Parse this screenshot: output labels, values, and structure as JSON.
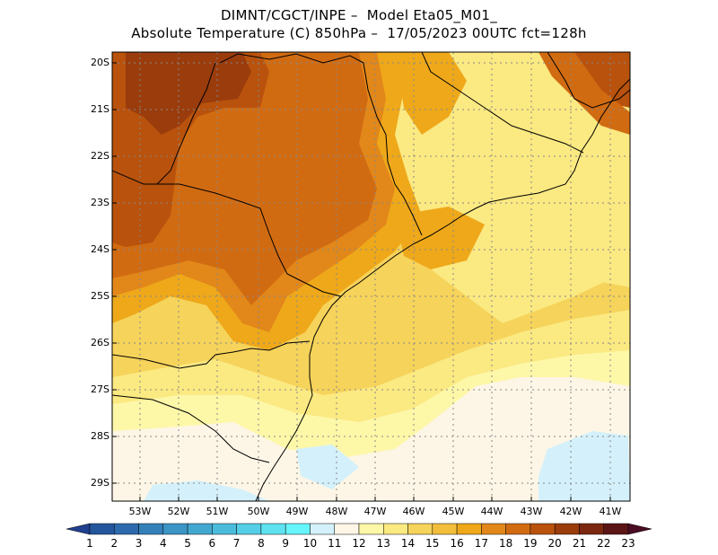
{
  "title": {
    "line1": "DIMNT/CGCT/INPE –  Model Eta05_M01_",
    "line2": "Absolute Temperature (C) 850hPa –  17/05/2023 00UTC fct=128h"
  },
  "map": {
    "lat_labels": [
      "20S",
      "21S",
      "22S",
      "23S",
      "24S",
      "25S",
      "26S",
      "27S",
      "28S",
      "29S"
    ],
    "lon_labels": [
      "53W",
      "52W",
      "51W",
      "50W",
      "49W",
      "48W",
      "47W",
      "46W",
      "45W",
      "44W",
      "43W",
      "42W",
      "41W"
    ],
    "grid": "dotted"
  },
  "colorbar": {
    "labels": [
      "1",
      "2",
      "3",
      "4",
      "5",
      "6",
      "7",
      "8",
      "9",
      "10",
      "11",
      "12",
      "13",
      "14",
      "15",
      "16",
      "17",
      "18",
      "19",
      "20",
      "21",
      "22",
      "23"
    ],
    "colors": [
      "#1f3f8f",
      "#24569e",
      "#2c6aad",
      "#3480b9",
      "#3b95c5",
      "#43a8d0",
      "#4cbcdc",
      "#55cfe7",
      "#5ee2f0",
      "#66f5fb",
      "#d4f1fb",
      "#fdf6e6",
      "#fdf7a8",
      "#fbe982",
      "#f6d35a",
      "#f2be3c",
      "#eea81a",
      "#e2871a",
      "#d16b12",
      "#b8520d",
      "#9a3c0c",
      "#7c2710",
      "#5c1515",
      "#4a0d24"
    ]
  }
}
